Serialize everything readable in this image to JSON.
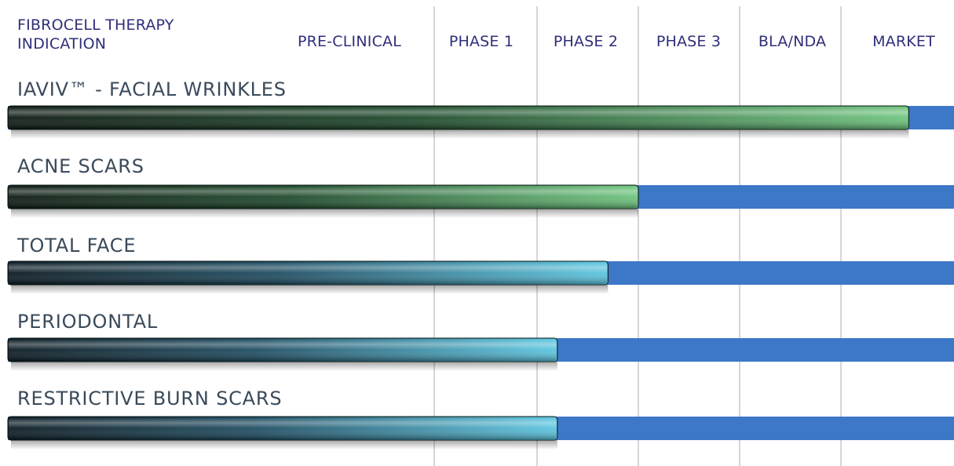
{
  "header": {
    "title": "FIBROCELL THERAPY INDICATION",
    "phases": [
      "PRE-CLINICAL",
      "PHASE 1",
      "PHASE 2",
      "PHASE 3",
      "BLA/NDA",
      "MARKET"
    ]
  },
  "chart_data": {
    "type": "bar",
    "orientation": "horizontal",
    "title": "",
    "xlabel": "",
    "ylabel": "",
    "stages": [
      "PRE-CLINICAL",
      "PHASE 1",
      "PHASE 2",
      "PHASE 3",
      "BLA/NDA",
      "MARKET"
    ],
    "categories": [
      "IAVIV™ - FACIAL WRINKLES",
      "ACNE SCARS",
      "TOTAL FACE",
      "PERIODONTAL",
      "RESTRICTIVE BURN SCARS"
    ],
    "values": [
      5.6,
      3.0,
      2.7,
      2.2,
      2.2
    ],
    "xlim": [
      0,
      6
    ],
    "bar_colors": [
      "green",
      "green",
      "teal",
      "teal",
      "teal"
    ],
    "track_color": "#3d78c8",
    "grid": true
  }
}
